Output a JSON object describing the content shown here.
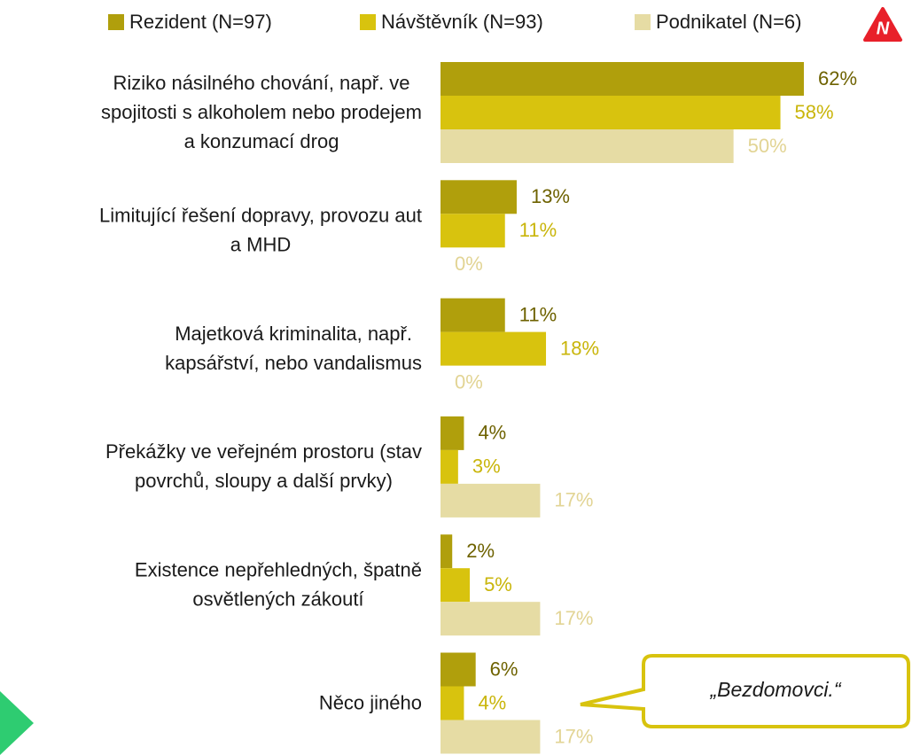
{
  "chart_data": {
    "type": "hbar",
    "categories": [
      [
        "Riziko násilného chování, např. ve",
        "spojitosti s alkoholem nebo prodejem",
        "a konzumací drog"
      ],
      [
        "Limitující řešení dopravy, provozu aut",
        "a MHD"
      ],
      [
        "Majetková kriminalita, např.",
        "kapsářství, nebo vandalismus"
      ],
      [
        "Překážky ve veřejném prostoru (stav",
        "povrchů, sloupy a další prvky)"
      ],
      [
        "Existence nepřehledných, špatně",
        "osvětlených zákoutí"
      ],
      [
        "Něco jiného"
      ]
    ],
    "series": [
      {
        "name": "Rezident (N=97)",
        "color": "#b09f0c",
        "label_color": "#6e6200",
        "values": [
          62,
          13,
          11,
          4,
          2,
          6
        ],
        "value_labels": [
          "62%",
          "13%",
          "11%",
          "4%",
          "2%",
          "6%"
        ]
      },
      {
        "name": "Návštěvník (N=93)",
        "color": "#d8c30e",
        "label_color": "#c9b50a",
        "values": [
          58,
          11,
          18,
          3,
          5,
          4
        ],
        "value_labels": [
          "58%",
          "11%",
          "18%",
          "3%",
          "5%",
          "4%"
        ]
      },
      {
        "name": "Podnikatel (N=6)",
        "color": "#e6dca4",
        "label_color": "#e2d494",
        "values": [
          50,
          0,
          0,
          17,
          17,
          17
        ],
        "value_labels": [
          "50%",
          "0%",
          "0%",
          "17%",
          "17%",
          "17%"
        ]
      }
    ],
    "xlim": [
      0,
      80
    ],
    "annotations": [
      "„Bezdomovci.“"
    ]
  }
}
